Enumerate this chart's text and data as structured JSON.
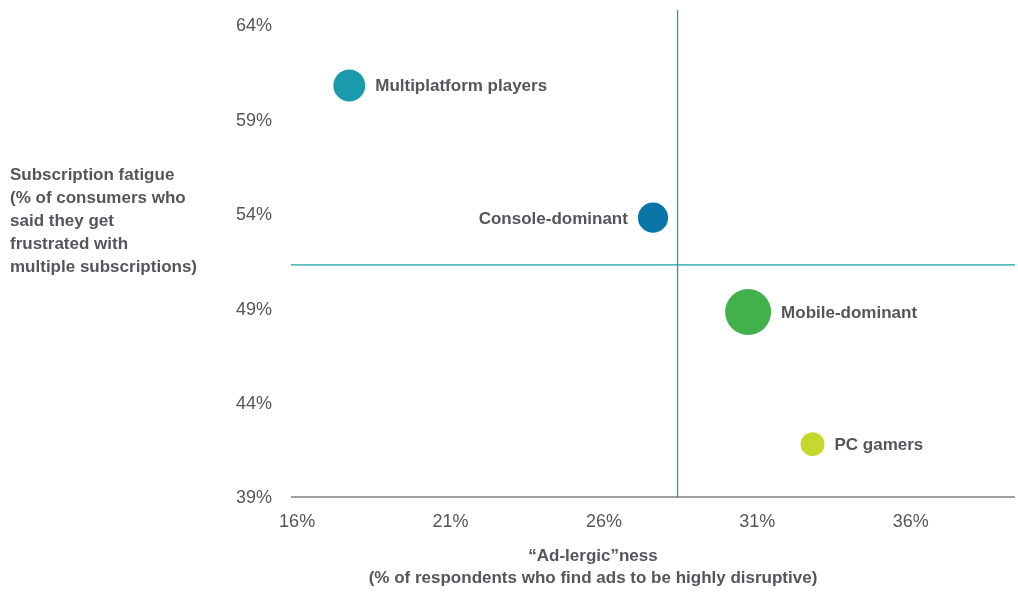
{
  "chart_data": {
    "type": "bubble",
    "xlabel": "“Ad-lergic”ness\n(% of respondents who find ads to be highly disruptive)",
    "ylabel": "Subscription fatigue\n(% of consumers who\nsaid they get\nfrustrated with\nmultiple subscriptions)",
    "xlim": [
      15.8,
      39.4
    ],
    "ylim": [
      39,
      64.8
    ],
    "xticks": [
      {
        "value": 16,
        "label": "16%"
      },
      {
        "value": 21,
        "label": "21%"
      },
      {
        "value": 26,
        "label": "26%"
      },
      {
        "value": 31,
        "label": "31%"
      },
      {
        "value": 36,
        "label": "36%"
      }
    ],
    "yticks": [
      {
        "value": 39,
        "label": "39%"
      },
      {
        "value": 44,
        "label": "44%"
      },
      {
        "value": 49,
        "label": "49%"
      },
      {
        "value": 54,
        "label": "54%"
      },
      {
        "value": 59,
        "label": "59%"
      },
      {
        "value": 64,
        "label": "64%"
      }
    ],
    "grid": false,
    "series": [
      {
        "name": "Multiplatform players",
        "color": "#1a9bab",
        "x": [
          17.7
        ],
        "values": [
          60.8
        ],
        "sizes": [
          0.48
        ]
      },
      {
        "name": "Console-dominant",
        "color": "#0a76a8",
        "x": [
          27.6
        ],
        "values": [
          53.8
        ],
        "sizes": [
          0.43
        ]
      },
      {
        "name": "Mobile-dominant",
        "color": "#43b14b",
        "x": [
          30.7
        ],
        "values": [
          48.8
        ],
        "sizes": [
          1
        ]
      },
      {
        "name": "PC gamers",
        "color": "#c4d82e",
        "x": [
          32.8
        ],
        "values": [
          41.8
        ],
        "sizes": [
          0.27
        ]
      }
    ],
    "ref_lines": [
      {
        "axis": "x",
        "value": 28.4,
        "color": "#1aa3a3"
      },
      {
        "axis": "y",
        "value": 51.3,
        "color": "#1aa3a3"
      }
    ]
  }
}
